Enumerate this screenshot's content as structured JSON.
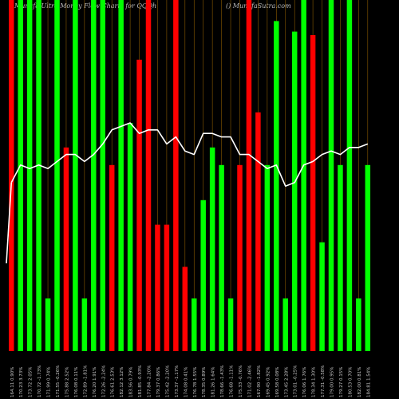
{
  "header": {
    "title": "Munafa Ultra Money Flow Charts for QQQh",
    "site": "() MunafaSutra.com"
  },
  "colors": {
    "background": "#000000",
    "up": "#00ff00",
    "down": "#ff0000",
    "line": "#ffffff",
    "grid": "#8a5a00",
    "label": "#cccccc"
  },
  "chart_data": {
    "type": "bar",
    "title": "Munafa Ultra Money Flow Charts for QQQh",
    "xlabel": "",
    "ylabel": "",
    "ylim": [
      0,
      100
    ],
    "grid": true,
    "categories": [
      "164.11 0.90%",
      "170.23 3.73%",
      "173.72 2.05%",
      "170.72 -1.73%",
      "171.99 0.74%",
      "171.55 -0.26%",
      "175.88 2.52%",
      "176.08 0.11%",
      "172.89 -1.81%",
      "176.20 1.91%",
      "172.26 -2.24%",
      "176.61 2.53%",
      "182.12 3.12%",
      "183.56 0.79%",
      "181.85 -0.93%",
      "177.84 -2.20%",
      "179.37 0.86%",
      "175.42 -2.20%",
      "173.37 -1.17%",
      "174.08 0.41%",
      "176.78 1.55%",
      "178.35 0.89%",
      "181.26 1.64%",
      "178.66 -1.43%",
      "176.68 -1.11%",
      "175.33 -0.76%",
      "171.02 -2.46%",
      "167.90 -1.82%",
      "169.45 0.92%",
      "169.58 0.08%",
      "173.45 2.28%",
      "173.01 -0.25%",
      "176.06 1.76%",
      "178.34 1.30%",
      "177.31 -0.58%",
      "179.00 0.95%",
      "179.27 0.15%",
      "180.53 0.70%",
      "182.00 0.81%",
      "184.81 1.54%"
    ],
    "values": [
      100,
      100,
      100,
      100,
      15,
      100,
      58,
      100,
      15,
      100,
      100,
      53,
      100,
      65,
      83,
      100,
      36,
      36,
      100,
      24,
      15,
      43,
      58,
      53,
      15,
      53,
      100,
      68,
      53,
      94,
      15,
      91,
      100,
      90,
      31,
      100,
      53,
      100,
      15,
      53
    ],
    "colors": [
      "red",
      "green",
      "green",
      "green",
      "green",
      "green",
      "red",
      "green",
      "green",
      "green",
      "green",
      "red",
      "green",
      "green",
      "red",
      "red",
      "red",
      "red",
      "red",
      "red",
      "green",
      "green",
      "green",
      "green",
      "green",
      "red",
      "red",
      "red",
      "green",
      "green",
      "green",
      "green",
      "green",
      "red",
      "green",
      "green",
      "green",
      "green",
      "green",
      "green"
    ],
    "series": [
      {
        "name": "",
        "values": [
          48,
          53,
          52,
          53,
          52,
          54,
          56,
          56,
          54,
          56,
          59,
          63,
          64,
          65,
          62,
          63,
          63,
          59,
          61,
          57,
          56,
          62,
          62,
          61,
          61,
          56,
          56,
          54,
          52,
          53,
          47,
          48,
          53,
          54,
          56,
          57,
          56,
          58,
          58,
          59
        ]
      }
    ]
  }
}
